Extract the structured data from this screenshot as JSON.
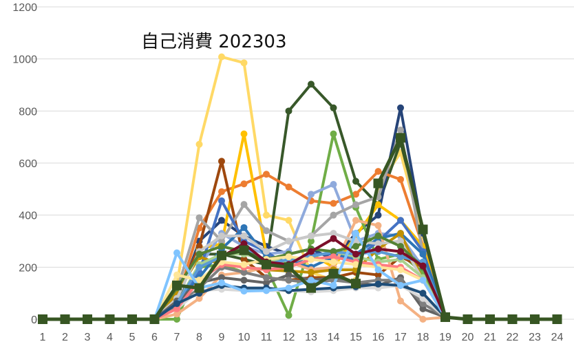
{
  "chart_data": {
    "type": "line",
    "title": "自己消費 202303",
    "xlabel": "",
    "ylabel": "",
    "ylim": [
      0,
      1200
    ],
    "yticks": [
      0,
      200,
      400,
      600,
      800,
      1000,
      1200
    ],
    "categories": [
      "1",
      "2",
      "3",
      "4",
      "5",
      "6",
      "7",
      "8",
      "9",
      "10",
      "11",
      "12",
      "13",
      "14",
      "15",
      "16",
      "17",
      "18",
      "19",
      "20",
      "21",
      "22",
      "23",
      "24"
    ],
    "grid": true,
    "legend": "none",
    "series": [
      {
        "color": "#FFD966",
        "width": 4,
        "marker": "circle",
        "values": [
          0,
          0,
          0,
          0,
          0,
          0,
          130,
          672,
          1008,
          985,
          400,
          380,
          180,
          150,
          150,
          510,
          640,
          320,
          8,
          0,
          0,
          0,
          0,
          0
        ]
      },
      {
        "color": "#38582A",
        "width": 4,
        "marker": "circle",
        "values": [
          0,
          0,
          0,
          0,
          0,
          0,
          100,
          250,
          250,
          230,
          210,
          800,
          903,
          812,
          530,
          440,
          680,
          350,
          8,
          0,
          0,
          0,
          0,
          0
        ]
      },
      {
        "color": "#264478",
        "width": 4,
        "marker": "circle",
        "values": [
          0,
          0,
          0,
          0,
          0,
          0,
          60,
          300,
          380,
          320,
          280,
          250,
          270,
          230,
          330,
          400,
          812,
          330,
          8,
          0,
          0,
          0,
          0,
          0
        ]
      },
      {
        "color": "#ED7D31",
        "width": 4,
        "marker": "circle",
        "values": [
          0,
          0,
          0,
          0,
          0,
          0,
          70,
          350,
          490,
          520,
          557,
          508,
          455,
          445,
          480,
          568,
          537,
          280,
          8,
          0,
          0,
          0,
          0,
          0
        ]
      },
      {
        "color": "#FFC000",
        "width": 4,
        "marker": "circle",
        "values": [
          0,
          0,
          0,
          0,
          0,
          0,
          90,
          270,
          290,
          712,
          250,
          210,
          250,
          200,
          320,
          440,
          380,
          280,
          8,
          0,
          0,
          0,
          0,
          0
        ]
      },
      {
        "color": "#70AD47",
        "width": 4,
        "marker": "circle",
        "values": [
          0,
          0,
          0,
          0,
          0,
          0,
          0,
          200,
          210,
          180,
          200,
          15,
          300,
          712,
          430,
          230,
          250,
          180,
          8,
          0,
          0,
          0,
          0,
          0
        ]
      },
      {
        "color": "#9E480E",
        "width": 4,
        "marker": "circle",
        "values": [
          0,
          0,
          0,
          0,
          0,
          0,
          80,
          280,
          607,
          230,
          160,
          150,
          160,
          160,
          180,
          170,
          240,
          200,
          8,
          0,
          0,
          0,
          0,
          0
        ]
      },
      {
        "color": "#8FAADC",
        "width": 4,
        "marker": "circle",
        "values": [
          0,
          0,
          0,
          0,
          0,
          0,
          40,
          200,
          330,
          280,
          250,
          260,
          480,
          518,
          300,
          330,
          320,
          200,
          8,
          0,
          0,
          0,
          0,
          0
        ]
      },
      {
        "color": "#A5A5A5",
        "width": 4,
        "marker": "circle",
        "values": [
          0,
          0,
          0,
          0,
          0,
          0,
          110,
          390,
          300,
          441,
          340,
          300,
          320,
          400,
          440,
          470,
          727,
          250,
          8,
          0,
          0,
          0,
          0,
          0
        ]
      },
      {
        "color": "#4472C4",
        "width": 4,
        "marker": "circle",
        "values": [
          0,
          0,
          0,
          0,
          0,
          0,
          50,
          180,
          455,
          300,
          260,
          200,
          250,
          250,
          230,
          300,
          380,
          260,
          8,
          0,
          0,
          0,
          0,
          0
        ]
      },
      {
        "color": "#2E75B6",
        "width": 4,
        "marker": "circle",
        "values": [
          0,
          0,
          0,
          0,
          0,
          0,
          60,
          160,
          270,
          352,
          240,
          220,
          200,
          240,
          250,
          310,
          330,
          250,
          8,
          0,
          0,
          0,
          0,
          0
        ]
      },
      {
        "color": "#F4B183",
        "width": 4,
        "marker": "circle",
        "values": [
          0,
          0,
          0,
          0,
          0,
          0,
          20,
          80,
          170,
          180,
          200,
          220,
          190,
          200,
          380,
          360,
          70,
          0,
          8,
          0,
          0,
          0,
          0,
          0
        ]
      },
      {
        "color": "#BF9000",
        "width": 4,
        "marker": "circle",
        "values": [
          0,
          0,
          0,
          0,
          0,
          0,
          100,
          240,
          210,
          200,
          190,
          185,
          180,
          190,
          190,
          270,
          330,
          150,
          8,
          0,
          0,
          0,
          0,
          0
        ]
      },
      {
        "color": "#C9C9C9",
        "width": 4,
        "marker": "circle",
        "values": [
          0,
          0,
          0,
          0,
          0,
          0,
          80,
          260,
          320,
          320,
          260,
          300,
          320,
          330,
          300,
          290,
          300,
          150,
          8,
          0,
          0,
          0,
          0,
          0
        ]
      },
      {
        "color": "#A9D18E",
        "width": 4,
        "marker": "circle",
        "values": [
          0,
          0,
          0,
          0,
          0,
          0,
          60,
          210,
          250,
          250,
          230,
          220,
          240,
          260,
          240,
          220,
          230,
          160,
          8,
          0,
          0,
          0,
          0,
          0
        ]
      },
      {
        "color": "#636363",
        "width": 4,
        "marker": "circle",
        "values": [
          0,
          0,
          0,
          0,
          0,
          0,
          70,
          140,
          160,
          150,
          140,
          170,
          150,
          160,
          140,
          130,
          160,
          40,
          8,
          0,
          0,
          0,
          0,
          0
        ]
      },
      {
        "color": "#7F7F7F",
        "width": 4,
        "marker": "circle",
        "values": [
          0,
          0,
          0,
          0,
          0,
          0,
          50,
          120,
          200,
          180,
          160,
          150,
          140,
          150,
          140,
          150,
          150,
          60,
          8,
          0,
          0,
          0,
          0,
          0
        ]
      },
      {
        "color": "#D9D9D9",
        "width": 4,
        "marker": "circle",
        "values": [
          0,
          0,
          0,
          0,
          0,
          0,
          40,
          110,
          115,
          110,
          110,
          110,
          105,
          110,
          120,
          120,
          130,
          80,
          8,
          0,
          0,
          0,
          0,
          0
        ]
      },
      {
        "color": "#5B9BD5",
        "width": 4,
        "marker": "circle",
        "values": [
          0,
          0,
          0,
          0,
          0,
          0,
          60,
          200,
          240,
          280,
          210,
          230,
          240,
          260,
          250,
          260,
          240,
          220,
          8,
          0,
          0,
          0,
          0,
          0
        ]
      },
      {
        "color": "#548235",
        "width": 4,
        "marker": "circle",
        "values": [
          0,
          0,
          0,
          0,
          0,
          0,
          120,
          250,
          280,
          260,
          230,
          250,
          270,
          260,
          280,
          320,
          280,
          200,
          8,
          0,
          0,
          0,
          0,
          0
        ]
      },
      {
        "color": "#FF7C80",
        "width": 4,
        "marker": "circle",
        "values": [
          0,
          0,
          0,
          0,
          0,
          0,
          40,
          150,
          210,
          200,
          190,
          200,
          230,
          240,
          220,
          210,
          200,
          150,
          8,
          0,
          0,
          0,
          0,
          0
        ]
      },
      {
        "color": "#FFE699",
        "width": 4,
        "marker": "circle",
        "values": [
          0,
          0,
          0,
          0,
          0,
          0,
          170,
          150,
          220,
          210,
          230,
          240,
          230,
          220,
          210,
          200,
          190,
          150,
          8,
          0,
          0,
          0,
          0,
          0
        ]
      },
      {
        "color": "#1F4E79",
        "width": 4,
        "marker": "circle",
        "values": [
          0,
          0,
          0,
          0,
          0,
          0,
          60,
          100,
          130,
          120,
          120,
          110,
          115,
          120,
          125,
          135,
          130,
          100,
          8,
          0,
          0,
          0,
          0,
          0
        ]
      },
      {
        "color": "#80C4FF",
        "width": 4,
        "marker": "circle",
        "values": [
          0,
          0,
          0,
          0,
          0,
          0,
          255,
          120,
          140,
          108,
          110,
          120,
          150,
          130,
          330,
          190,
          130,
          150,
          8,
          0,
          0,
          0,
          0,
          0
        ]
      },
      {
        "color": "#7B0E2A",
        "width": 4,
        "marker": "circle",
        "values": [
          0,
          0,
          0,
          0,
          0,
          0,
          130,
          120,
          240,
          290,
          220,
          210,
          260,
          310,
          250,
          270,
          260,
          205,
          8,
          0,
          0,
          0,
          0,
          0
        ]
      },
      {
        "color": "#375623",
        "width": 5,
        "marker": "square",
        "values": [
          0,
          0,
          0,
          0,
          0,
          0,
          130,
          120,
          245,
          265,
          210,
          200,
          120,
          175,
          137,
          522,
          697,
          345,
          8,
          0,
          0,
          0,
          0,
          0
        ]
      }
    ]
  }
}
